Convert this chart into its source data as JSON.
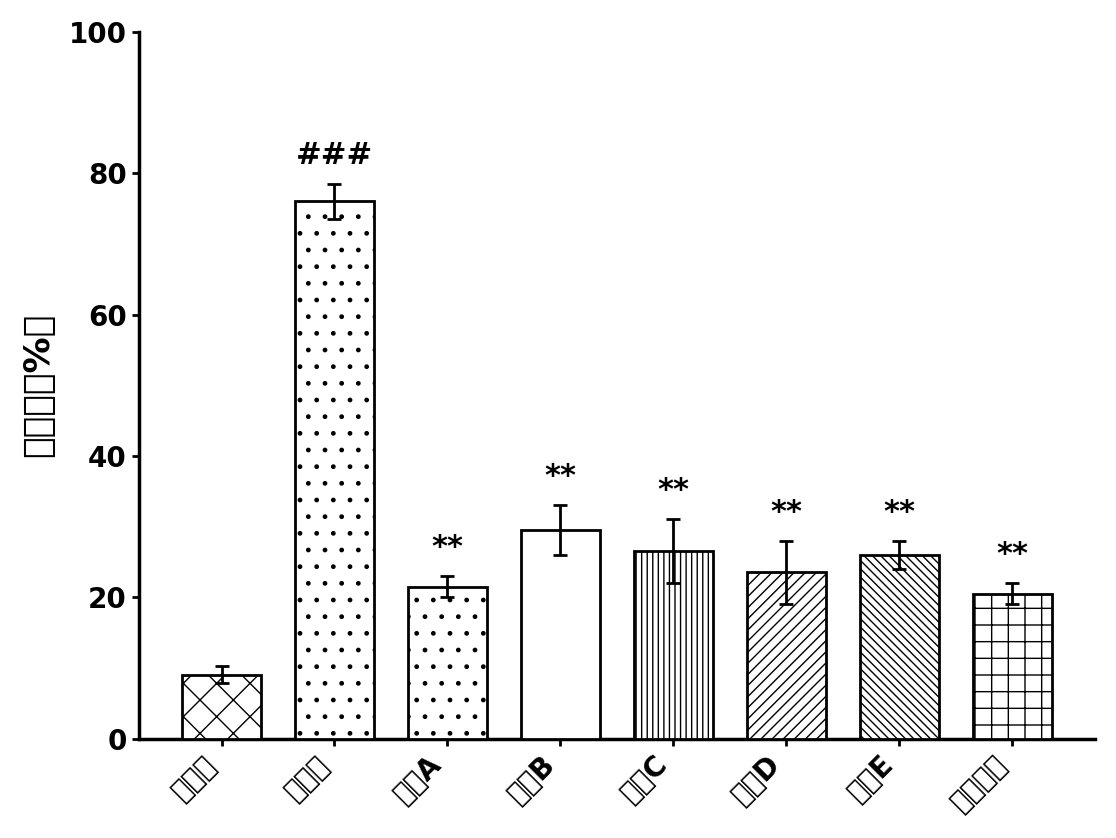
{
  "categories": [
    "对照组",
    "缺氧组",
    "多肽A",
    "多肽B",
    "多肽C",
    "多肽D",
    "多肽E",
    "曲美他嗪"
  ],
  "values": [
    9.0,
    76.0,
    21.5,
    29.5,
    26.5,
    23.5,
    26.0,
    20.5
  ],
  "errors": [
    1.2,
    2.5,
    1.5,
    3.5,
    4.5,
    4.5,
    2.0,
    1.5
  ],
  "ylabel": "死亡率（%）",
  "ylim": [
    0,
    100
  ],
  "yticks": [
    0,
    20,
    40,
    60,
    80,
    100
  ],
  "bar_color": "#000000",
  "background_color": "#ffffff",
  "hatch_patterns": [
    "x",
    ".",
    ".",
    "=",
    "|||",
    "///",
    "\\\\\\\\",
    "+"
  ],
  "annotations_above": [
    null,
    "###",
    "**",
    "**",
    "**",
    "**",
    "**",
    "**"
  ],
  "bar_width": 0.7,
  "tick_fontsize": 20,
  "label_fontsize": 26,
  "annot_fontsize": 22
}
